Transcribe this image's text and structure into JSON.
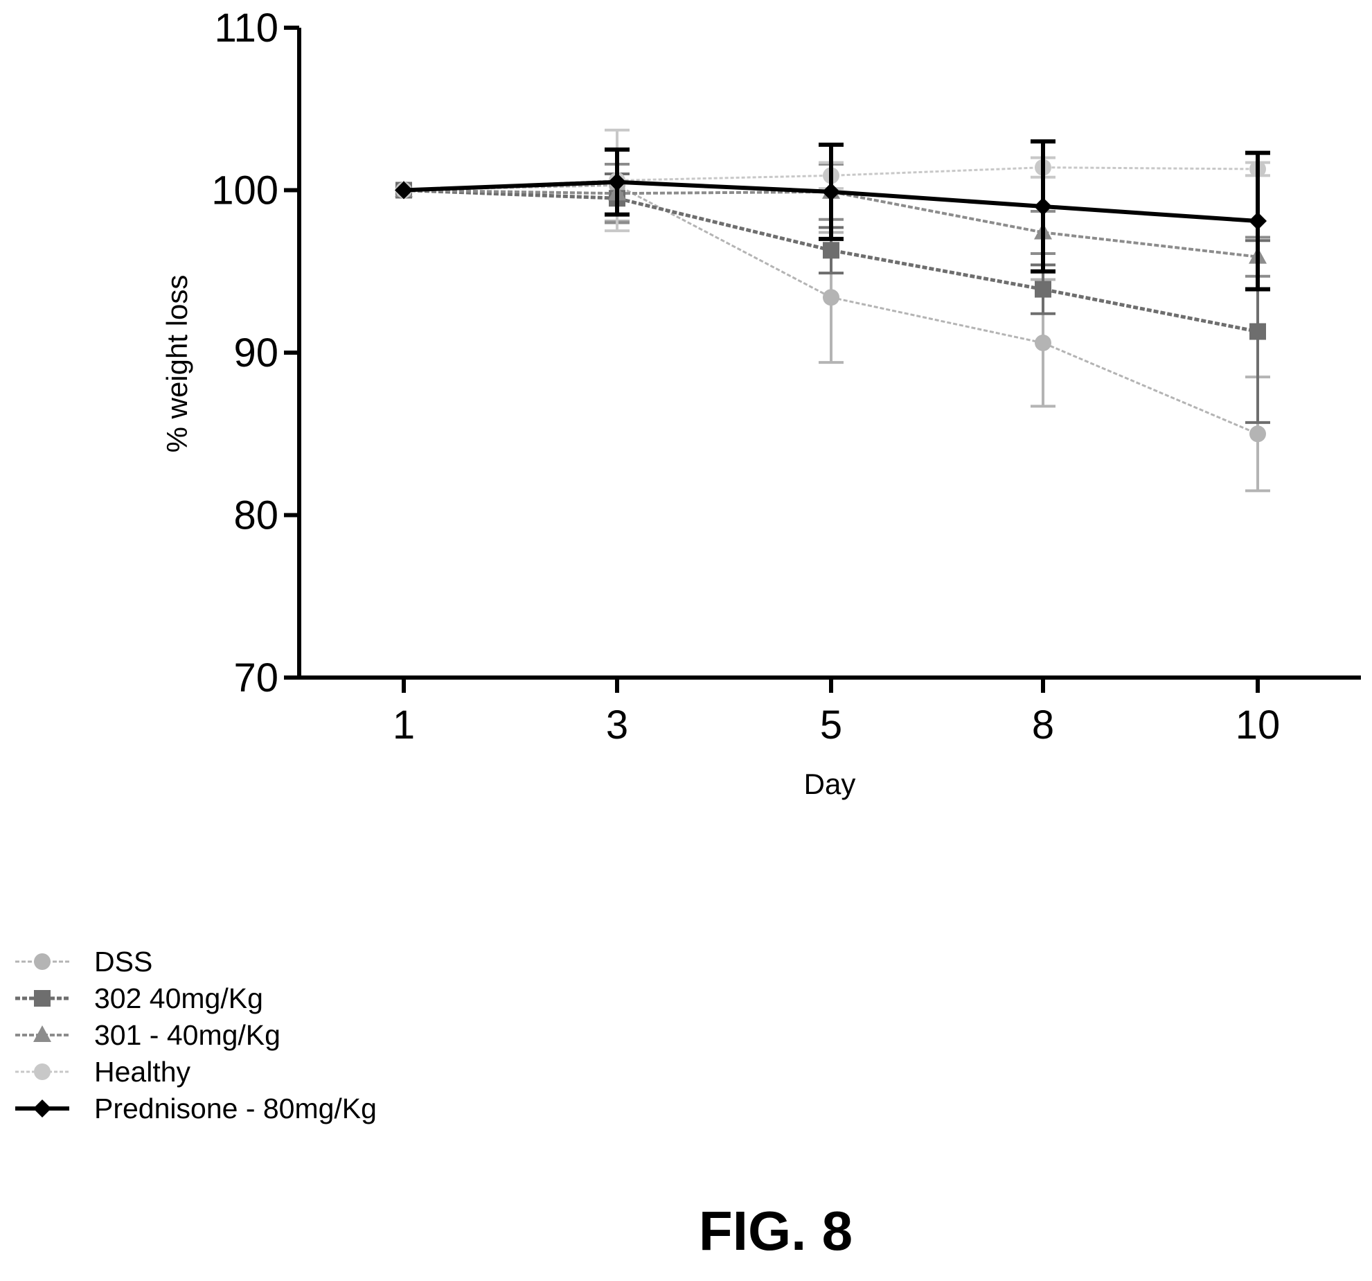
{
  "chart_data": {
    "type": "line",
    "xlabel": "Day",
    "ylabel": "% weight loss",
    "x": [
      1,
      3,
      5,
      8,
      10
    ],
    "x_tick_labels": [
      "1",
      "3",
      "5",
      "8",
      "10"
    ],
    "ylim": [
      70,
      110
    ],
    "y_ticks": [
      70,
      80,
      90,
      100,
      110
    ],
    "grid": false,
    "legend_position": "bottom-left",
    "series": [
      {
        "name": "DSS",
        "color": "#b4b4b4",
        "values": [
          100,
          100.3,
          93.4,
          90.6,
          85.0
        ],
        "error": [
          0,
          2.2,
          4.0,
          3.9,
          3.5
        ]
      },
      {
        "name": "302 40mg/Kg",
        "color": "#6e6e6e",
        "values": [
          100,
          99.5,
          96.3,
          93.9,
          91.3
        ],
        "error": [
          0,
          1.5,
          1.4,
          1.5,
          5.6
        ]
      },
      {
        "name": "301 - 40mg/Kg",
        "color": "#8c8c8c",
        "values": [
          100,
          99.8,
          99.9,
          97.4,
          95.9
        ],
        "error": [
          0,
          1.8,
          1.7,
          1.3,
          1.2
        ]
      },
      {
        "name": "Healthy",
        "color": "#c8c8c8",
        "values": [
          100,
          100.6,
          100.9,
          101.4,
          101.3
        ],
        "error": [
          0,
          3.1,
          0.8,
          0.6,
          0.4
        ]
      },
      {
        "name": "Prednisone - 80mg/Kg",
        "color": "#000000",
        "values": [
          100,
          100.5,
          99.9,
          99.0,
          98.1
        ],
        "error": [
          0,
          2.0,
          2.9,
          4.0,
          4.2
        ]
      }
    ]
  },
  "figure": {
    "caption": "FIG. 8"
  }
}
